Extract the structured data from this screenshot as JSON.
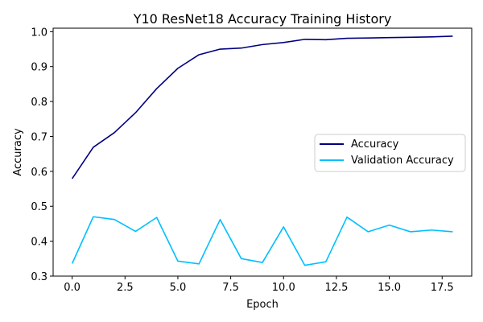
{
  "chart_data": {
    "type": "line",
    "title": "Y10 ResNet18 Accuracy Training History",
    "xlabel": "Epoch",
    "ylabel": "Accuracy",
    "xlim": [
      -0.9,
      18.9
    ],
    "ylim": [
      0.3,
      1.01
    ],
    "x_ticks": [
      0.0,
      2.5,
      5.0,
      7.5,
      10.0,
      12.5,
      15.0,
      17.5
    ],
    "x_tick_labels": [
      "0.0",
      "2.5",
      "5.0",
      "7.5",
      "10.0",
      "12.5",
      "15.0",
      "17.5"
    ],
    "y_ticks": [
      0.3,
      0.4,
      0.5,
      0.6,
      0.7,
      0.8,
      0.9,
      1.0
    ],
    "y_tick_labels": [
      "0.3",
      "0.4",
      "0.5",
      "0.6",
      "0.7",
      "0.8",
      "0.9",
      "1.0"
    ],
    "grid": false,
    "legend_position": "center-right",
    "x": [
      0,
      1,
      2,
      3,
      4,
      5,
      6,
      7,
      8,
      9,
      10,
      11,
      12,
      13,
      14,
      15,
      16,
      17,
      18
    ],
    "series": [
      {
        "name": "Accuracy",
        "color": "#000080",
        "values": [
          0.579,
          0.669,
          0.711,
          0.768,
          0.837,
          0.895,
          0.934,
          0.95,
          0.953,
          0.963,
          0.969,
          0.978,
          0.977,
          0.981,
          0.982,
          0.983,
          0.984,
          0.985,
          0.987
        ]
      },
      {
        "name": "Validation Accuracy",
        "color": "#00bfff",
        "values": [
          0.336,
          0.47,
          0.462,
          0.428,
          0.468,
          0.343,
          0.335,
          0.462,
          0.35,
          0.339,
          0.441,
          0.331,
          0.341,
          0.469,
          0.427,
          0.446,
          0.427,
          0.432,
          0.427
        ]
      }
    ]
  }
}
